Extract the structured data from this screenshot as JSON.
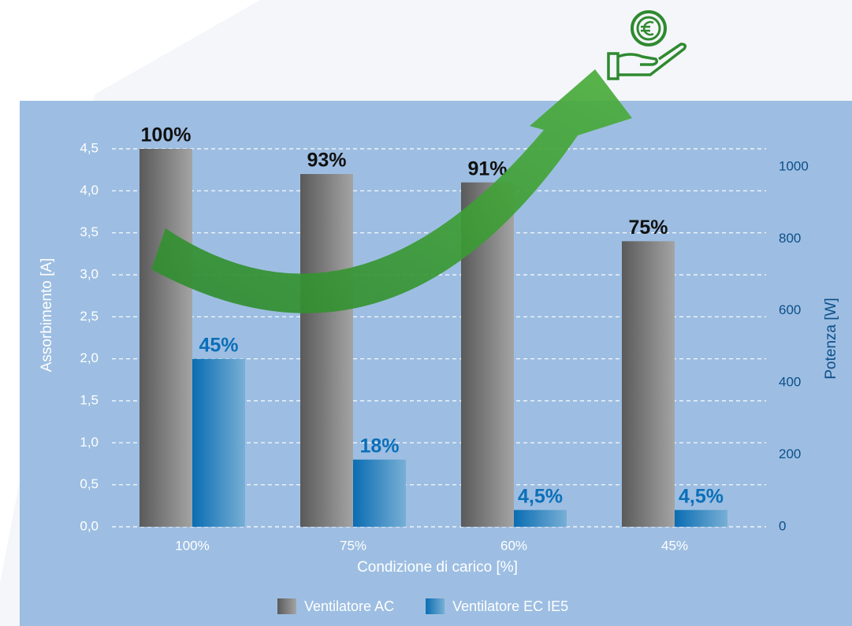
{
  "chart_data": {
    "type": "bar",
    "x_label": "Condizione di carico [%]",
    "y_label": "Assorbimento [A]",
    "y2_label": "Potenza [W]",
    "categories": [
      "100%",
      "75%",
      "60%",
      "45%"
    ],
    "series": [
      {
        "name": "Ventilatore AC",
        "color": "#5a5a5a",
        "values": [
          4.5,
          4.2,
          4.1,
          3.4
        ],
        "percent_labels": [
          "100%",
          "93%",
          "91%",
          "75%"
        ]
      },
      {
        "name": "Ventilatore EC IE5",
        "color": "#0a6db3",
        "values": [
          2.0,
          0.8,
          0.2,
          0.2
        ],
        "percent_labels": [
          "45%",
          "18%",
          "4,5%",
          "4,5%"
        ]
      }
    ],
    "ylim": [
      0,
      4.5
    ],
    "yticks": [
      {
        "value": 0,
        "label": "0,0"
      },
      {
        "value": 0.5,
        "label": "0,5"
      },
      {
        "value": 1,
        "label": "1,0"
      },
      {
        "value": 1.5,
        "label": "1,5"
      },
      {
        "value": 2,
        "label": "2,0"
      },
      {
        "value": 2.5,
        "label": "2,5"
      },
      {
        "value": 3,
        "label": "3,0"
      },
      {
        "value": 3.5,
        "label": "3,5"
      },
      {
        "value": 4,
        "label": "4,0"
      },
      {
        "value": 4.5,
        "label": "4,5"
      }
    ],
    "y2lim": [
      0,
      1050
    ],
    "y2ticks": [
      0,
      200,
      400,
      600,
      800,
      1000
    ],
    "grid": true,
    "legend": "bottom"
  }
}
